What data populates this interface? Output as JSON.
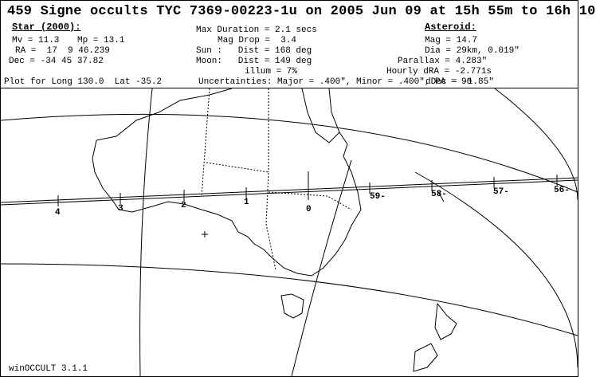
{
  "title": "459 Signe occults TYC 7369-00223-1u on 2005 Jun 09 at 15h 55m to 16h 10",
  "star": {
    "heading": "Star (2000):",
    "mv": "Mv = 11.3",
    "mp": "Mp = 13.1",
    "ra": "RA =  17  9 46.239",
    "dec": "Dec = -34 45 37.82"
  },
  "event": {
    "max_duration": "Max Duration = 2.1 secs",
    "mag_drop": "Mag Drop =  3.4",
    "sun": "Sun :   Dist = 168 deg",
    "moon": "Moon:   Dist = 149 deg",
    "illum": "illum = 7%"
  },
  "asteroid": {
    "heading": "Asteroid:",
    "mag": "Mag = 14.7",
    "dia": "Dia = 29km, 0.019\"",
    "parallax": "Parallax = 4.283\"",
    "hourly_dra": "Hourly dRA = -2.771s",
    "hourly_ddec": "dDec = -1.85\""
  },
  "plot_for": "Plot for Long 130.0  Lat -35.2",
  "uncertainties": "Uncertainties: Major = .400\", Minor = .400\", PA = 90",
  "footer": "winOCCULT 3.1.1",
  "path_labels": [
    "4",
    "3",
    "2",
    "1",
    "0",
    "59-",
    "58-",
    "57-",
    "56-"
  ]
}
